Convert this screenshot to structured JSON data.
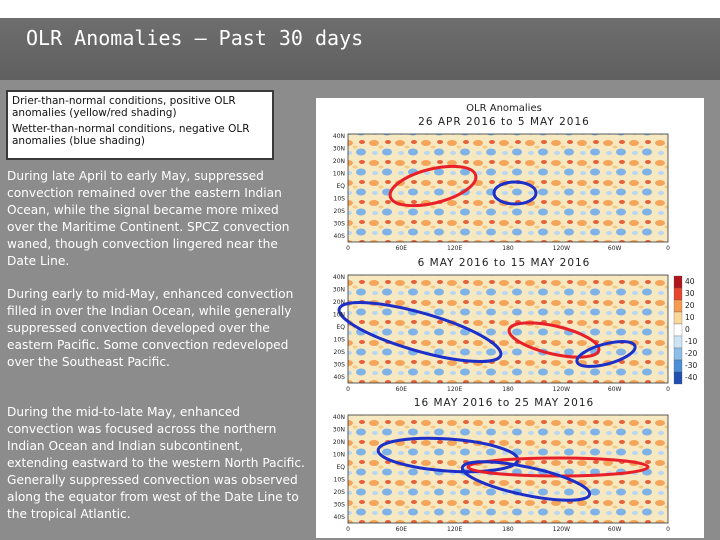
{
  "title": "OLR Anomalies – Past 30 days",
  "legend": {
    "dry": "Drier-than-normal conditions, positive OLR anomalies (yellow/red shading)",
    "wet": "Wetter-than-normal conditions, negative OLR anomalies (blue shading)"
  },
  "paragraphs": [
    "During late April to early May, suppressed convection remained over the eastern Indian Ocean, while the signal became more mixed over the Maritime Continent. SPCZ convection waned, though convection lingered near the Date Line.",
    "During early to mid-May, enhanced convection filled in over the Indian Ocean, while generally suppressed convection developed over the eastern Pacific. Some convection redeveloped over the Southeast Pacific.",
    "During the mid-to-late May, enhanced convection was focused across the northern Indian Ocean and Indian subcontinent, extending eastward to the western North Pacific. Generally suppressed convection was observed along the equator from west of the Date Line to the tropical Atlantic."
  ],
  "figure": {
    "title": "OLR Anomalies",
    "panels": [
      {
        "period": "26 APR 2016 to 5 MAY 2016"
      },
      {
        "period": "6 MAY 2016 to 15 MAY 2016"
      },
      {
        "period": "16 MAY 2016 to 25 MAY 2016"
      }
    ],
    "lat_labels": [
      "40N",
      "30N",
      "20N",
      "10N",
      "EQ",
      "10S",
      "20S",
      "30S",
      "40S"
    ],
    "lon_labels": [
      "0",
      "60E",
      "120E",
      "180",
      "120W",
      "60W",
      "0"
    ],
    "colorbar": [
      "40",
      "30",
      "20",
      "10",
      "0",
      "-10",
      "-20",
      "-30",
      "-40"
    ],
    "colors": {
      "red_circle": "#e8202a",
      "blue_circle": "#1c2fc8"
    }
  }
}
